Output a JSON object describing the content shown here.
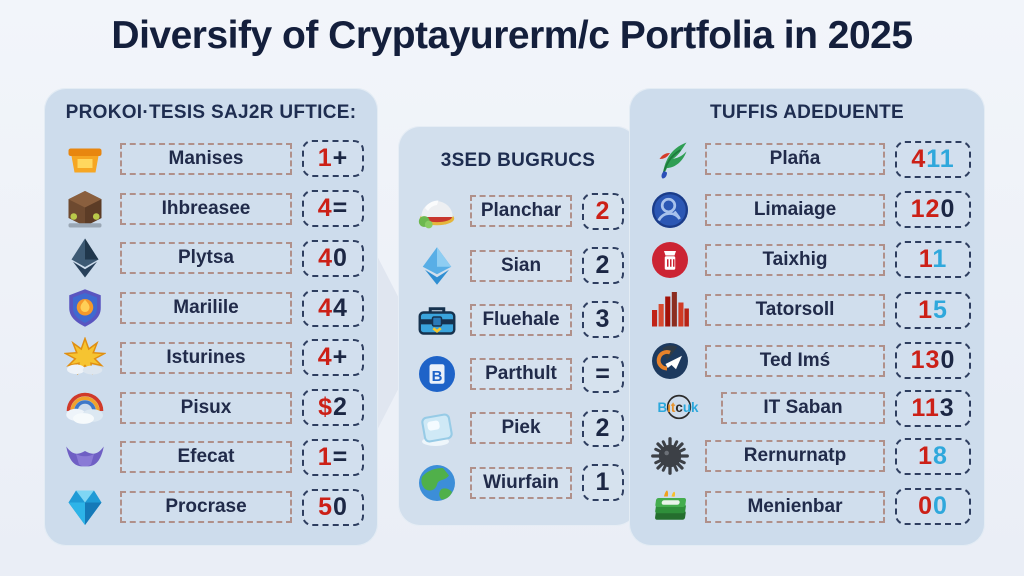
{
  "title": "Diversify of Cryptayurerm/c Portfolia in 2025",
  "colors": {
    "red": "#cc2017",
    "dark": "#1c2744",
    "blue": "#2fa8dc",
    "panel_bg": "#cddcec",
    "title_color": "#141f3c"
  },
  "columns": [
    {
      "id": "left",
      "header": "PROKOI·TESIS SAJ2R UFTICE:",
      "items": [
        {
          "icon": "basket-icon",
          "label": "Manises",
          "value": [
            [
              "1",
              "red"
            ],
            [
              "+",
              "dark"
            ]
          ]
        },
        {
          "icon": "crate-icon",
          "label": "Ihbreasee",
          "value": [
            [
              "4",
              "red"
            ],
            [
              "=",
              "dark"
            ]
          ]
        },
        {
          "icon": "pyramid-icon",
          "label": "Plytsa",
          "value": [
            [
              "4",
              "red"
            ],
            [
              "0",
              "dark"
            ]
          ]
        },
        {
          "icon": "shield-flame-icon",
          "label": "Marilile",
          "value": [
            [
              "4",
              "red"
            ],
            [
              "4",
              "dark"
            ]
          ]
        },
        {
          "icon": "starburst-icon",
          "label": "Isturines",
          "value": [
            [
              "4",
              "red"
            ],
            [
              "+",
              "dark"
            ]
          ]
        },
        {
          "icon": "rainbow-icon",
          "label": "Pisux",
          "value": [
            [
              "$",
              "red"
            ],
            [
              "2",
              "dark"
            ]
          ]
        },
        {
          "icon": "bat-icon",
          "label": "Efecat",
          "value": [
            [
              "1",
              "red"
            ],
            [
              "=",
              "dark"
            ]
          ]
        },
        {
          "icon": "gem-icon",
          "label": "Procrase",
          "value": [
            [
              "5",
              "red"
            ],
            [
              "0",
              "dark"
            ]
          ]
        }
      ]
    },
    {
      "id": "middle",
      "header": "3SED BUGRUCS",
      "items": [
        {
          "icon": "dome-icon",
          "label": "Planchar",
          "value": [
            [
              "2",
              "red"
            ]
          ]
        },
        {
          "icon": "diamond-icon",
          "label": "Sian",
          "value": [
            [
              "2",
              "dark"
            ]
          ]
        },
        {
          "icon": "toolbox-icon",
          "label": "Fluehale",
          "value": [
            [
              "3",
              "dark"
            ]
          ]
        },
        {
          "icon": "b-badge-icon",
          "label": "Parthult",
          "value": [
            [
              "=",
              "dark"
            ]
          ]
        },
        {
          "icon": "ice-cube-icon",
          "label": "Piek",
          "value": [
            [
              "2",
              "dark"
            ]
          ]
        },
        {
          "icon": "globe-icon",
          "label": "Wiurfain",
          "value": [
            [
              "1",
              "dark"
            ]
          ]
        }
      ]
    },
    {
      "id": "right",
      "header": "TUFFIS ADEDUENTE",
      "items": [
        {
          "icon": "bird-icon",
          "label": "Plaña",
          "value": [
            [
              "4",
              "red"
            ],
            [
              "11",
              "blue"
            ]
          ]
        },
        {
          "icon": "user-circle-icon",
          "label": "Limaiage",
          "value": [
            [
              "12",
              "red"
            ],
            [
              "0",
              "dark"
            ]
          ]
        },
        {
          "icon": "red-circle-icon",
          "label": "Taixhig",
          "value": [
            [
              "1",
              "red"
            ],
            [
              "1",
              "blue"
            ]
          ]
        },
        {
          "icon": "bar-chart-icon",
          "label": "Tatorsoll",
          "value": [
            [
              "1",
              "red"
            ],
            [
              "5",
              "blue"
            ]
          ]
        },
        {
          "icon": "paper-plane-icon",
          "label": "Ted Imś",
          "value": [
            [
              "13",
              "red"
            ],
            [
              "0",
              "dark"
            ]
          ]
        },
        {
          "icon": "bitcuk-logo-icon",
          "label": "IT Saban",
          "value": [
            [
              "11",
              "red"
            ],
            [
              "3",
              "dark"
            ]
          ]
        },
        {
          "icon": "virus-icon",
          "label": "Rernurnatp",
          "value": [
            [
              "1",
              "red"
            ],
            [
              "8",
              "blue"
            ]
          ]
        },
        {
          "icon": "money-icon",
          "label": "Menienbar",
          "value": [
            [
              "0",
              "red"
            ],
            [
              "0",
              "blue"
            ]
          ]
        }
      ]
    }
  ]
}
